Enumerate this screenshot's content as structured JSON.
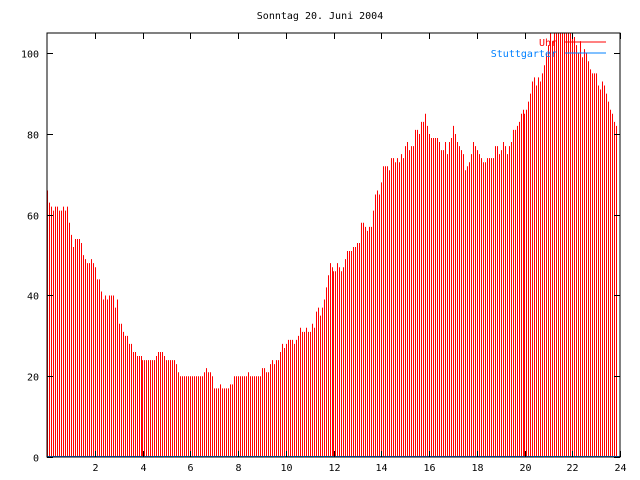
{
  "chart_data": {
    "type": "bar",
    "title": "Sonntag 20. Juni 2004",
    "xlabel": "",
    "ylabel": "",
    "xlim": [
      0,
      24
    ],
    "ylim": [
      0,
      105
    ],
    "x_step_hours": 0.0833333,
    "x_ticks": [
      2,
      4,
      6,
      8,
      10,
      12,
      14,
      16,
      18,
      20,
      22,
      24
    ],
    "y_ticks": [
      0,
      20,
      40,
      60,
      80,
      100
    ],
    "grid": false,
    "legend_placement": "top-right",
    "legend": [
      {
        "label": "Uhr",
        "color": "#ff0000"
      },
      {
        "label": "Stuttgarter",
        "color": "#0080ff"
      }
    ],
    "series": [
      {
        "name": "Uhr",
        "color": "#ff0000",
        "style": "impulses",
        "values": [
          66,
          63,
          62,
          61,
          62,
          62,
          61,
          61,
          62,
          61,
          62,
          58,
          55,
          52,
          54,
          54,
          54,
          53,
          50,
          49,
          48,
          48,
          49,
          48,
          47,
          44,
          44,
          41,
          39,
          40,
          39,
          40,
          40,
          40,
          37,
          39,
          33,
          33,
          31,
          30,
          30,
          28,
          28,
          26,
          26,
          25,
          25,
          25,
          24,
          24,
          24,
          24,
          24,
          24,
          24,
          25,
          26,
          26,
          26,
          25,
          24,
          24,
          24,
          24,
          24,
          23,
          21,
          20,
          20,
          20,
          20,
          20,
          20,
          20,
          20,
          20,
          20,
          20,
          20,
          21,
          22,
          21,
          21,
          20,
          17,
          17,
          17,
          18,
          17,
          17,
          17,
          17,
          18,
          18,
          20,
          20,
          20,
          20,
          20,
          20,
          20,
          21,
          20,
          20,
          20,
          20,
          20,
          20,
          22,
          22,
          21,
          21,
          23,
          24,
          23,
          24,
          24,
          26,
          28,
          27,
          28,
          29,
          29,
          29,
          28,
          29,
          30,
          32,
          31,
          31,
          32,
          31,
          31,
          33,
          32,
          36,
          37,
          35,
          37,
          39,
          42,
          45,
          48,
          47,
          46,
          46,
          48,
          47,
          46,
          47,
          49,
          51,
          51,
          51,
          52,
          52,
          53,
          53,
          58,
          58,
          57,
          56,
          57,
          57,
          61,
          65,
          66,
          65,
          68,
          72,
          72,
          72,
          71,
          74,
          74,
          73,
          74,
          73,
          75,
          74,
          77,
          78,
          76,
          77,
          77,
          81,
          81,
          80,
          83,
          83,
          85,
          82,
          80,
          79,
          79,
          79,
          79,
          78,
          76,
          76,
          78,
          75,
          78,
          79,
          82,
          80,
          78,
          77,
          76,
          75,
          71,
          72,
          73,
          75,
          78,
          77,
          76,
          75,
          74,
          73,
          73,
          74,
          74,
          74,
          74,
          77,
          77,
          75,
          76,
          78,
          77,
          75,
          77,
          78,
          81,
          81,
          82,
          83,
          85,
          86,
          85,
          86,
          88,
          90,
          93,
          94,
          92,
          94,
          93,
          95,
          97,
          100,
          102,
          105,
          103,
          105,
          105,
          105,
          105,
          105,
          105,
          105,
          105,
          105,
          105,
          104,
          102,
          100,
          103,
          99,
          101,
          100,
          98,
          96,
          95,
          95,
          95,
          92,
          91,
          93,
          92,
          90,
          88,
          86,
          85,
          83,
          82
        ]
      },
      {
        "name": "Stuttgarter",
        "color": "#0080ff",
        "style": "line",
        "values": [
          0,
          0
        ]
      }
    ]
  }
}
